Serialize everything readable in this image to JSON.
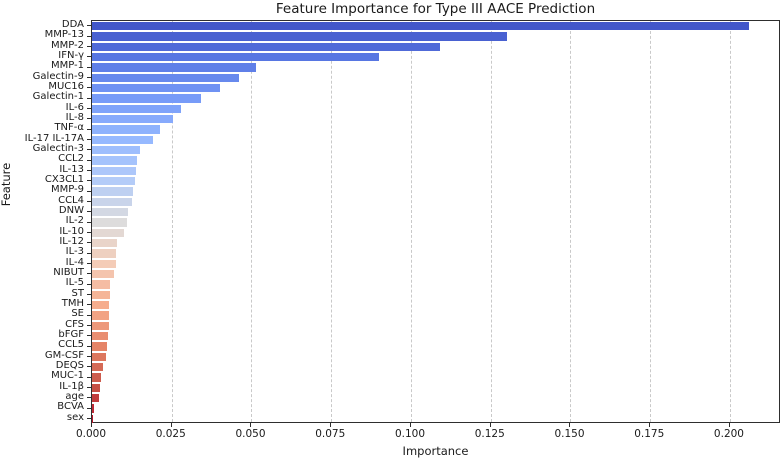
{
  "chart_data": {
    "type": "bar",
    "orientation": "horizontal",
    "title": "Feature Importance for Type III AACE Prediction",
    "xlabel": "Importance",
    "ylabel": "Feature",
    "xlim": [
      0,
      0.216
    ],
    "grid": "vertical-dashed",
    "legend": "none",
    "colormap": "coolwarm",
    "xticks": [
      0.0,
      0.025,
      0.05,
      0.075,
      0.1,
      0.125,
      0.15,
      0.175,
      0.2
    ],
    "xtick_labels": [
      "0.000",
      "0.025",
      "0.050",
      "0.075",
      "0.100",
      "0.125",
      "0.150",
      "0.175",
      "0.200"
    ],
    "categories": [
      "DDA",
      "MMP-13",
      "MMP-2",
      "IFN-γ",
      "MMP-1",
      "Galectin-9",
      "MUC16",
      "Galectin-1",
      "IL-6",
      "IL-8",
      "TNF-α",
      "IL-17 IL-17A",
      "Galectin-3",
      "CCL2",
      "IL-13",
      "CX3CL1",
      "MMP-9",
      "CCL4",
      "DNW",
      "IL-2",
      "IL-10",
      "IL-12",
      "IL-3",
      "IL-4",
      "NIBUT",
      "IL-5",
      "ST",
      "TMH",
      "SE",
      "CFS",
      "bFGF",
      "CCL5",
      "GM-CSF",
      "DEQS",
      "MUC-1",
      "IL-1β",
      "age",
      "BCVA",
      "sex"
    ],
    "values": [
      0.206,
      0.13,
      0.109,
      0.09,
      0.0513,
      0.0461,
      0.0402,
      0.0342,
      0.028,
      0.0255,
      0.0213,
      0.0192,
      0.0152,
      0.0141,
      0.0138,
      0.0135,
      0.013,
      0.0125,
      0.0114,
      0.0111,
      0.0101,
      0.0078,
      0.0076,
      0.0075,
      0.0069,
      0.0057,
      0.0055,
      0.0053,
      0.0052,
      0.0052,
      0.0051,
      0.0048,
      0.0045,
      0.0034,
      0.0028,
      0.0026,
      0.0021,
      0.0007,
      0.0003
    ],
    "colors": [
      "#4257c9",
      "#4961d1",
      "#506ad8",
      "#5776e2",
      "#5f7fe8",
      "#6789ed",
      "#6f92f3",
      "#779bf8",
      "#7fa3fa",
      "#87aafc",
      "#8eb2fd",
      "#96b9ff",
      "#9ebefd",
      "#a5c3fc",
      "#adc7fa",
      "#b4ccf8",
      "#bed0f1",
      "#c9d4ea",
      "#d3d8e3",
      "#dddcdc",
      "#e3d8d3",
      "#e9d4c9",
      "#eed0c0",
      "#f4ccb7",
      "#f4c4ad",
      "#f5bca3",
      "#f5b598",
      "#f6ad8e",
      "#f2a384",
      "#ed987a",
      "#e98e71",
      "#e58467",
      "#dd775e",
      "#d56a56",
      "#cd5c4d",
      "#c64f44",
      "#c13c3c",
      "#bd2935",
      "#b8172d"
    ]
  }
}
